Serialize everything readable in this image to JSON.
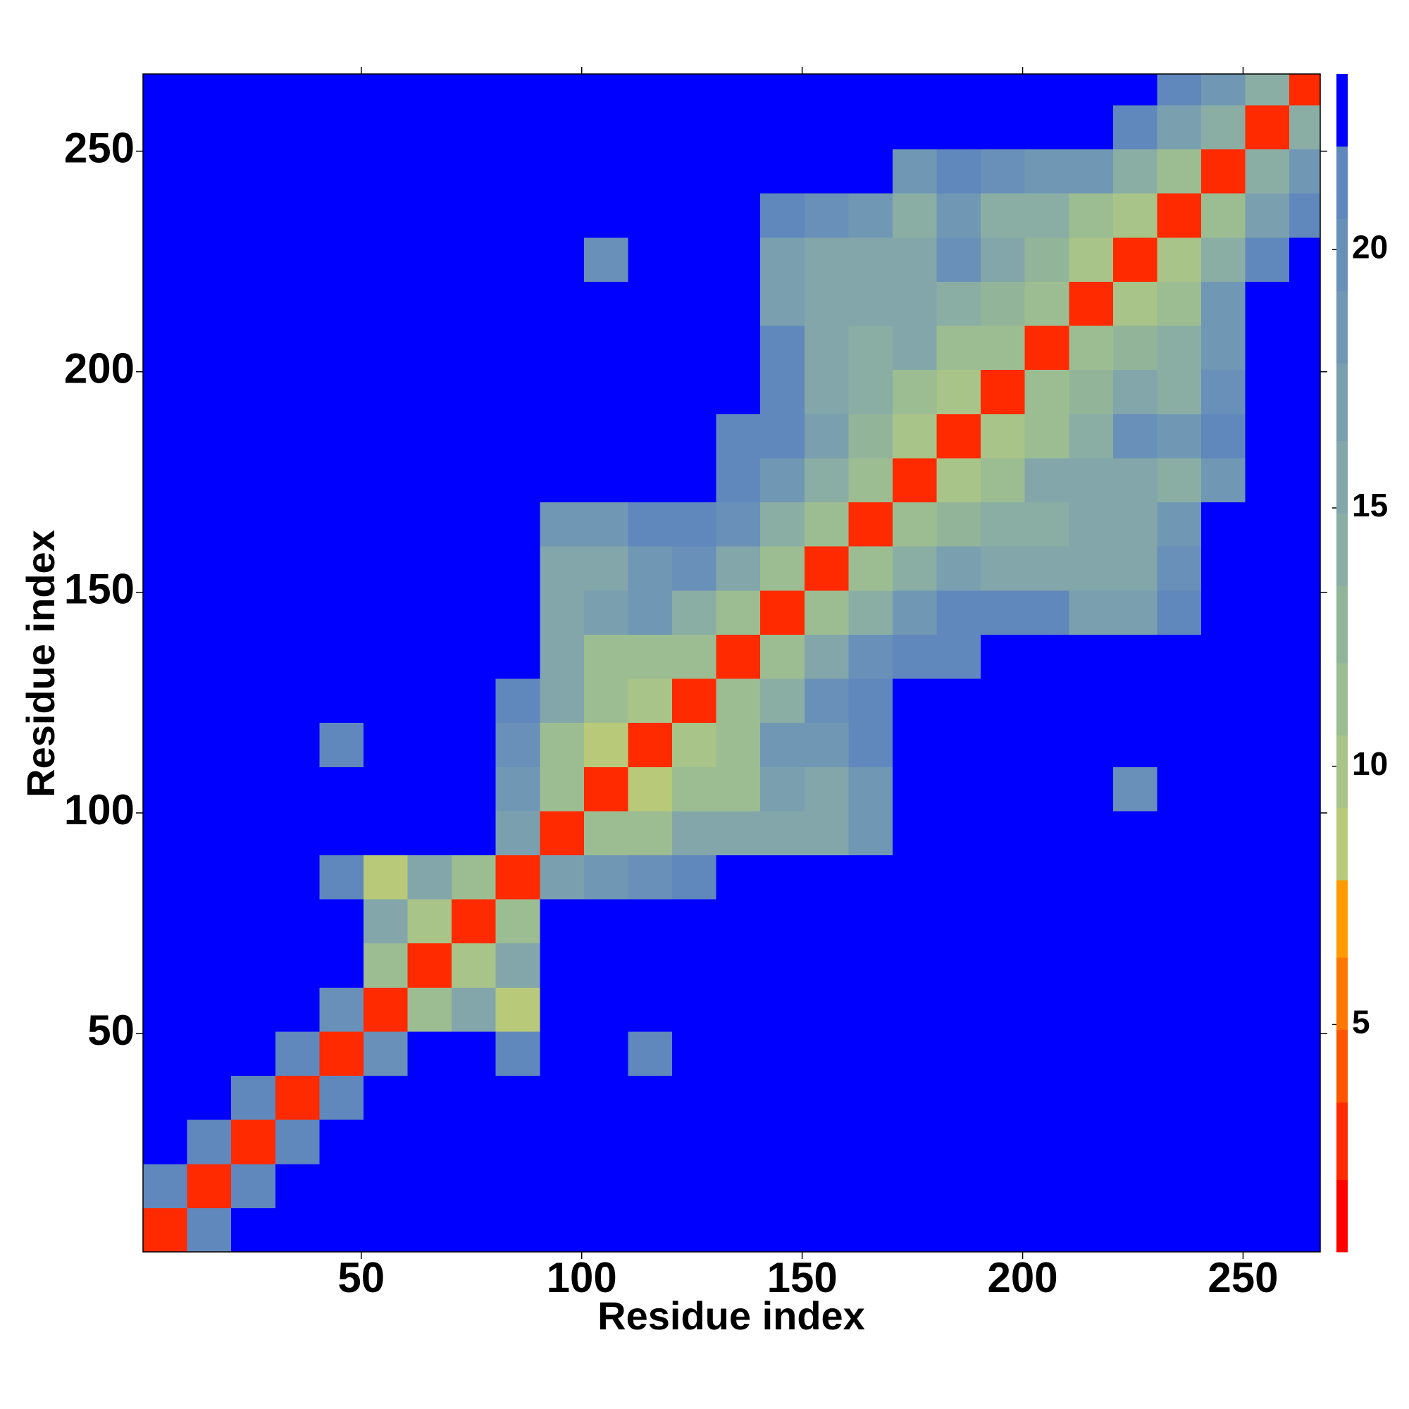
{
  "chart_data": {
    "type": "heatmap",
    "xlabel": "Residue index",
    "ylabel": "Residue index",
    "xlim": [
      0.5,
      267.5
    ],
    "ylim": [
      0.5,
      267.5
    ],
    "xticks": [
      50,
      100,
      150,
      200,
      250
    ],
    "yticks": [
      50,
      100,
      150,
      200,
      250
    ],
    "xbins": [
      0.5,
      10.5,
      20.5,
      30.5,
      40.5,
      50.5,
      60.5,
      70.5,
      80.5,
      90.5,
      100.5,
      110.5,
      120.5,
      130.5,
      140.5,
      150.5,
      160.5,
      170.5,
      180.5,
      190.5,
      200.5,
      210.5,
      220.5,
      230.5,
      240.5,
      250.5,
      260.5,
      267.5
    ],
    "ybins": [
      0.5,
      10.5,
      20.5,
      30.5,
      40.5,
      50.5,
      60.5,
      70.5,
      80.5,
      90.5,
      100.5,
      110.5,
      120.5,
      130.5,
      140.5,
      150.5,
      160.5,
      170.5,
      180.5,
      190.5,
      200.5,
      210.5,
      220.5,
      230.5,
      240.5,
      250.5,
      260.5,
      267.5
    ],
    "values": [
      [
        3,
        21,
        23,
        23,
        23,
        23,
        23,
        23,
        23,
        23,
        23,
        23,
        23,
        23,
        23,
        23,
        23,
        23,
        23,
        23,
        23,
        23,
        23,
        23,
        23,
        23,
        23
      ],
      [
        21,
        3,
        21,
        23,
        23,
        23,
        23,
        23,
        23,
        23,
        23,
        23,
        23,
        23,
        23,
        23,
        23,
        23,
        23,
        23,
        23,
        23,
        23,
        23,
        23,
        23,
        23
      ],
      [
        23,
        21,
        3,
        21,
        23,
        23,
        23,
        23,
        23,
        23,
        23,
        23,
        23,
        23,
        23,
        23,
        23,
        23,
        23,
        23,
        23,
        23,
        23,
        23,
        23,
        23,
        23
      ],
      [
        23,
        23,
        21,
        3,
        21,
        23,
        23,
        23,
        23,
        23,
        23,
        23,
        23,
        23,
        23,
        23,
        23,
        23,
        23,
        23,
        23,
        23,
        23,
        23,
        23,
        23,
        23
      ],
      [
        23,
        23,
        23,
        21,
        3,
        20,
        23,
        23,
        22,
        23,
        23,
        21,
        23,
        23,
        23,
        23,
        23,
        23,
        23,
        23,
        23,
        23,
        23,
        23,
        23,
        23,
        23
      ],
      [
        23,
        23,
        23,
        23,
        20,
        3,
        12,
        16,
        9,
        23,
        23,
        23,
        23,
        23,
        23,
        23,
        23,
        23,
        23,
        23,
        23,
        23,
        23,
        23,
        23,
        23,
        23
      ],
      [
        23,
        23,
        23,
        23,
        23,
        12,
        3,
        10,
        16,
        23,
        23,
        23,
        23,
        23,
        23,
        23,
        23,
        23,
        23,
        23,
        23,
        23,
        23,
        23,
        23,
        23,
        23
      ],
      [
        23,
        23,
        23,
        23,
        23,
        16,
        10,
        3,
        12,
        23,
        23,
        23,
        23,
        23,
        23,
        23,
        23,
        23,
        23,
        23,
        23,
        23,
        23,
        23,
        23,
        23,
        23
      ],
      [
        23,
        23,
        23,
        23,
        22,
        9,
        16,
        12,
        3,
        17,
        18,
        20,
        22,
        23,
        23,
        23,
        23,
        23,
        23,
        23,
        23,
        23,
        23,
        23,
        23,
        23,
        23
      ],
      [
        23,
        23,
        23,
        23,
        23,
        23,
        23,
        23,
        17,
        3,
        11,
        11,
        15,
        16,
        15,
        16,
        19,
        23,
        23,
        23,
        23,
        23,
        23,
        23,
        23,
        23,
        23
      ],
      [
        23,
        23,
        23,
        23,
        23,
        23,
        23,
        23,
        18,
        11,
        3,
        9,
        11,
        12,
        17,
        15,
        18,
        23,
        23,
        23,
        23,
        23,
        20,
        23,
        23,
        23,
        23
      ],
      [
        23,
        23,
        23,
        23,
        21,
        23,
        23,
        23,
        20,
        11,
        9,
        3,
        10,
        12,
        18,
        19,
        22,
        23,
        23,
        23,
        23,
        23,
        23,
        23,
        23,
        23,
        23
      ],
      [
        23,
        23,
        23,
        23,
        23,
        23,
        23,
        23,
        22,
        15,
        11,
        10,
        3,
        11,
        14,
        20,
        22,
        23,
        23,
        23,
        23,
        23,
        23,
        23,
        23,
        23,
        23
      ],
      [
        23,
        23,
        23,
        23,
        23,
        23,
        23,
        23,
        23,
        16,
        12,
        12,
        11,
        3,
        11,
        15,
        20,
        21,
        22,
        23,
        23,
        23,
        23,
        23,
        23,
        23,
        23
      ],
      [
        23,
        23,
        23,
        23,
        23,
        23,
        23,
        23,
        23,
        15,
        17,
        18,
        14,
        11,
        3,
        11,
        14,
        19,
        21,
        22,
        21,
        17,
        17,
        22,
        23,
        23,
        23
      ],
      [
        23,
        23,
        23,
        23,
        23,
        23,
        23,
        23,
        23,
        16,
        15,
        19,
        20,
        15,
        11,
        3,
        11,
        14,
        17,
        16,
        16,
        15,
        15,
        20,
        23,
        23,
        23
      ],
      [
        23,
        23,
        23,
        23,
        23,
        23,
        23,
        23,
        23,
        19,
        18,
        22,
        22,
        20,
        14,
        11,
        3,
        12,
        13,
        14,
        14,
        16,
        15,
        18,
        23,
        23,
        23
      ],
      [
        23,
        23,
        23,
        23,
        23,
        23,
        23,
        23,
        23,
        23,
        23,
        23,
        23,
        21,
        19,
        14,
        12,
        3,
        10,
        11,
        15,
        16,
        15,
        14,
        19,
        23,
        23
      ],
      [
        23,
        23,
        23,
        23,
        23,
        23,
        23,
        23,
        23,
        23,
        23,
        23,
        23,
        22,
        21,
        17,
        13,
        10,
        3,
        10,
        12,
        14,
        20,
        19,
        21,
        23,
        23
      ],
      [
        23,
        23,
        23,
        23,
        23,
        23,
        23,
        23,
        23,
        23,
        23,
        23,
        23,
        23,
        22,
        16,
        14,
        11,
        10,
        3,
        11,
        13,
        15,
        14,
        20,
        23,
        23
      ],
      [
        23,
        23,
        23,
        23,
        23,
        23,
        23,
        23,
        23,
        23,
        23,
        23,
        23,
        23,
        21,
        16,
        14,
        15,
        12,
        11,
        3,
        11,
        13,
        14,
        19,
        23,
        23
      ],
      [
        23,
        23,
        23,
        23,
        23,
        23,
        23,
        23,
        23,
        23,
        23,
        23,
        23,
        23,
        17,
        15,
        16,
        16,
        14,
        13,
        11,
        3,
        10,
        12,
        18,
        23,
        23
      ],
      [
        23,
        23,
        23,
        23,
        23,
        23,
        23,
        23,
        23,
        23,
        20,
        23,
        23,
        23,
        17,
        15,
        15,
        15,
        20,
        15,
        13,
        10,
        3,
        10,
        14,
        21,
        23
      ],
      [
        23,
        23,
        23,
        23,
        23,
        23,
        23,
        23,
        23,
        23,
        23,
        23,
        23,
        23,
        22,
        20,
        18,
        14,
        19,
        14,
        14,
        12,
        10,
        3,
        11,
        17,
        22
      ],
      [
        23,
        23,
        23,
        23,
        23,
        23,
        23,
        23,
        23,
        23,
        23,
        23,
        23,
        23,
        23,
        23,
        23,
        19,
        21,
        20,
        19,
        18,
        14,
        11,
        3,
        14,
        18
      ],
      [
        23,
        23,
        23,
        23,
        23,
        23,
        23,
        23,
        23,
        23,
        23,
        23,
        23,
        23,
        23,
        23,
        23,
        23,
        23,
        23,
        23,
        23,
        21,
        17,
        14,
        3,
        14
      ],
      [
        23,
        23,
        23,
        23,
        23,
        23,
        23,
        23,
        23,
        23,
        23,
        23,
        23,
        23,
        23,
        23,
        23,
        23,
        23,
        23,
        23,
        23,
        23,
        22,
        18,
        14,
        3
      ]
    ],
    "colorbar": {
      "levels": [
        0.6,
        2.0,
        3.5,
        4.9,
        6.3,
        7.8,
        9.2,
        10.6,
        12.0,
        13.5,
        14.9,
        16.3,
        17.8,
        19.2,
        20.6,
        22.0,
        23.4
      ],
      "colors": [
        "#ff0000",
        "#ff2a00",
        "#ff5500",
        "#ff7700",
        "#ff9a00",
        "#b8c97a",
        "#a8c488",
        "#9cbd92",
        "#92b59a",
        "#8aaea4",
        "#82a6aa",
        "#7aa0b0",
        "#7098b4",
        "#6890b8",
        "#6088bc",
        "#0000ff"
      ],
      "ticks": [
        5,
        10,
        15,
        20
      ]
    }
  }
}
